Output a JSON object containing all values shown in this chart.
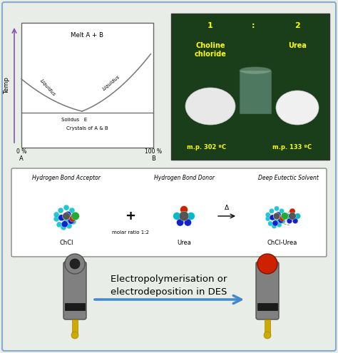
{
  "bg_color": "#e8ede8",
  "outer_border_color": "#88aacc",
  "phase_diagram": {
    "melt_text": "Melt A + B",
    "solidus_text": "Solidus   E",
    "crystals_text": "Crystals of A & B",
    "temp_label": "Temp",
    "x0_label": "0 %",
    "x100_label": "100 %",
    "A_label": "A",
    "B_label": "B",
    "arrow_color": "#8855aa",
    "liquidus_label": "Liquidus"
  },
  "photo_panel": {
    "bg_color": "#1a3d1a",
    "label1": "1",
    "label2": "2",
    "colon": ":",
    "choline_text": "Choline\nchloride",
    "urea_text": "Urea",
    "mp1_text": "m.p. 302 ºC",
    "mp2_text": "m.p. 133 ºC",
    "text_color": "#ffff00"
  },
  "reaction_panel": {
    "hba_label": "Hydrogen Bond Acceptor",
    "hbd_label": "Hydrogen Bond Donor",
    "des_label": "Deep Eutectic Solvent",
    "chcl_label": "ChCl",
    "molar_label": "molar ratio 1:2",
    "urea_label": "Urea",
    "product_label": "ChCl-Urea",
    "plus_sign": "+",
    "delta_sign": "Δ"
  },
  "electrode_panel": {
    "arrow_color": "#4488cc",
    "arrow_text": "Electropolymerisation or\nelectrodeposition in DES",
    "electrode_color": "#808080",
    "electrode_dark": "#505050",
    "connector_color": "#ccaa00",
    "red_cap": "#cc2200"
  }
}
